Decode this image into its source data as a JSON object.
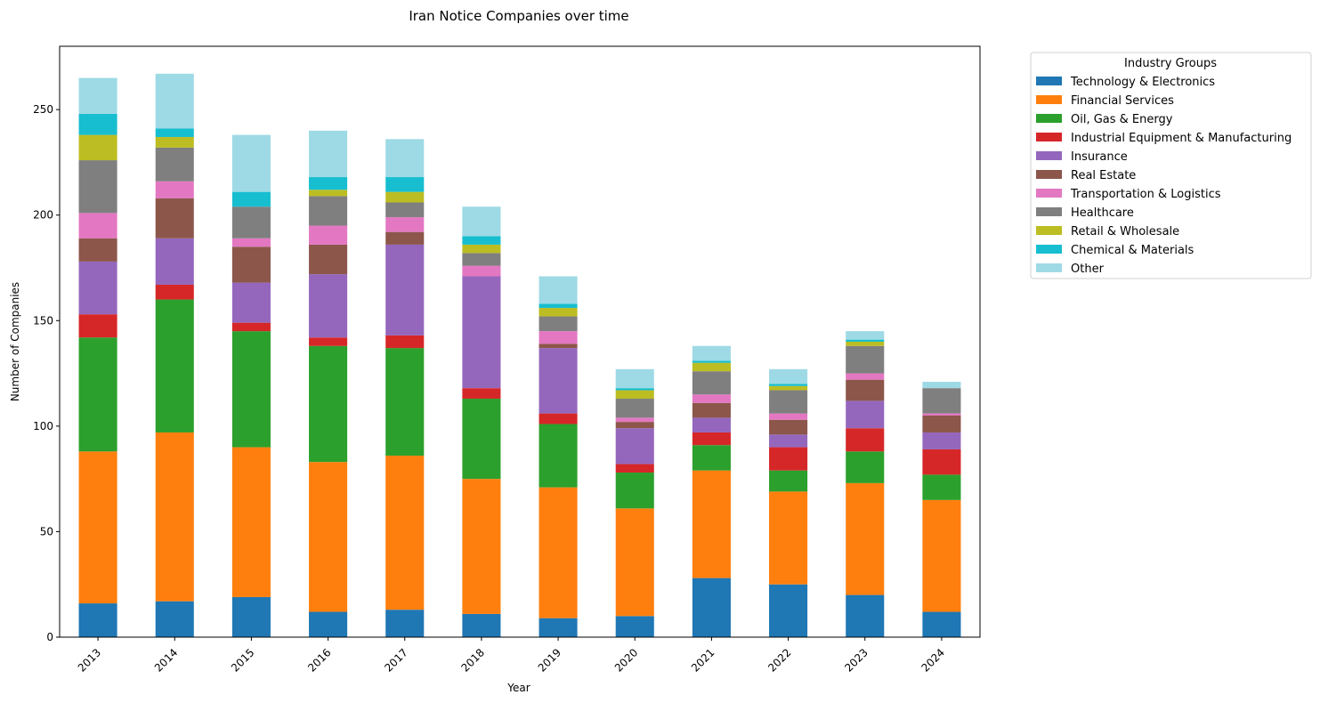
{
  "chart_data": {
    "type": "bar",
    "stacked": true,
    "title": "Iran Notice Companies over time",
    "xlabel": "Year",
    "ylabel": "Number of Companies",
    "ylim": [
      0,
      280
    ],
    "yticks": [
      0,
      50,
      100,
      150,
      200,
      250
    ],
    "categories": [
      "2013",
      "2014",
      "2015",
      "2016",
      "2017",
      "2018",
      "2019",
      "2020",
      "2021",
      "2022",
      "2023",
      "2024"
    ],
    "legend_title": "Industry Groups",
    "legend_position": "outside-top-right",
    "grid": false,
    "series": [
      {
        "name": "Technology & Electronics",
        "color": "#1f77b4",
        "values": [
          16,
          17,
          19,
          12,
          13,
          11,
          9,
          10,
          28,
          25,
          20,
          12
        ]
      },
      {
        "name": "Financial Services",
        "color": "#ff7f0e",
        "values": [
          72,
          80,
          71,
          71,
          73,
          64,
          62,
          51,
          51,
          44,
          53,
          53
        ]
      },
      {
        "name": "Oil, Gas & Energy",
        "color": "#2ca02c",
        "values": [
          54,
          63,
          55,
          55,
          51,
          38,
          30,
          17,
          12,
          10,
          15,
          12
        ]
      },
      {
        "name": "Industrial Equipment & Manufacturing",
        "color": "#d62728",
        "values": [
          11,
          7,
          4,
          4,
          6,
          5,
          5,
          4,
          6,
          11,
          11,
          12
        ]
      },
      {
        "name": "Insurance",
        "color": "#9467bd",
        "values": [
          25,
          22,
          19,
          30,
          43,
          53,
          31,
          17,
          7,
          6,
          13,
          8
        ]
      },
      {
        "name": "Real Estate",
        "color": "#8c564b",
        "values": [
          11,
          19,
          17,
          14,
          6,
          0,
          2,
          3,
          7,
          7,
          10,
          8
        ]
      },
      {
        "name": "Transportation & Logistics",
        "color": "#e377c2",
        "values": [
          12,
          8,
          4,
          9,
          7,
          5,
          6,
          2,
          4,
          3,
          3,
          1
        ]
      },
      {
        "name": "Healthcare",
        "color": "#7f7f7f",
        "values": [
          25,
          16,
          15,
          14,
          7,
          6,
          7,
          9,
          11,
          11,
          13,
          12
        ]
      },
      {
        "name": "Retail & Wholesale",
        "color": "#bcbd22",
        "values": [
          12,
          5,
          0,
          3,
          5,
          4,
          4,
          4,
          4,
          2,
          2,
          0
        ]
      },
      {
        "name": "Chemical & Materials",
        "color": "#17becf",
        "values": [
          10,
          4,
          7,
          6,
          7,
          4,
          2,
          1,
          1,
          1,
          1,
          0
        ]
      },
      {
        "name": "Other",
        "color": "#9edae5",
        "values": [
          17,
          26,
          27,
          22,
          18,
          14,
          13,
          9,
          7,
          7,
          4,
          3
        ]
      }
    ]
  }
}
